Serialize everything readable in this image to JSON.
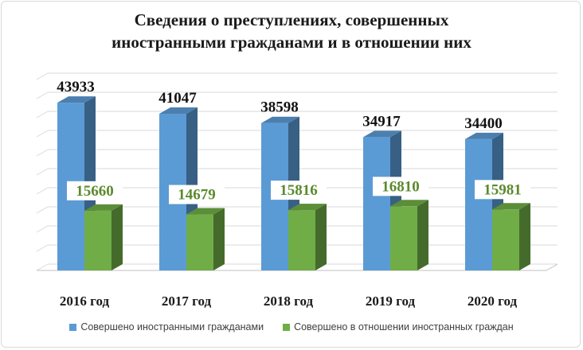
{
  "title_line1": "Сведения о преступлениях, совершенных",
  "title_line2": "иностранными гражданами и в отношении них",
  "chart_data": {
    "type": "bar",
    "title": "Сведения о преступлениях, совершенных иностранными гражданами и в отношении них",
    "categories": [
      "2016 год",
      "2017 год",
      "2018 год",
      "2019 год",
      "2020 год"
    ],
    "series": [
      {
        "name": "Совершено иностранными гражданами",
        "values": [
          43933,
          41047,
          38598,
          34917,
          34400
        ],
        "color": "#5b9bd5",
        "label_color": "#111111"
      },
      {
        "name": "Совершено в отношении иностранных граждан",
        "values": [
          15660,
          14679,
          15816,
          16810,
          15981
        ],
        "color": "#70ad47",
        "label_color": "#5b8a2e"
      }
    ],
    "ylim": [
      0,
      50000
    ],
    "grid": true,
    "legend": "bottom",
    "style": "3d-column"
  }
}
